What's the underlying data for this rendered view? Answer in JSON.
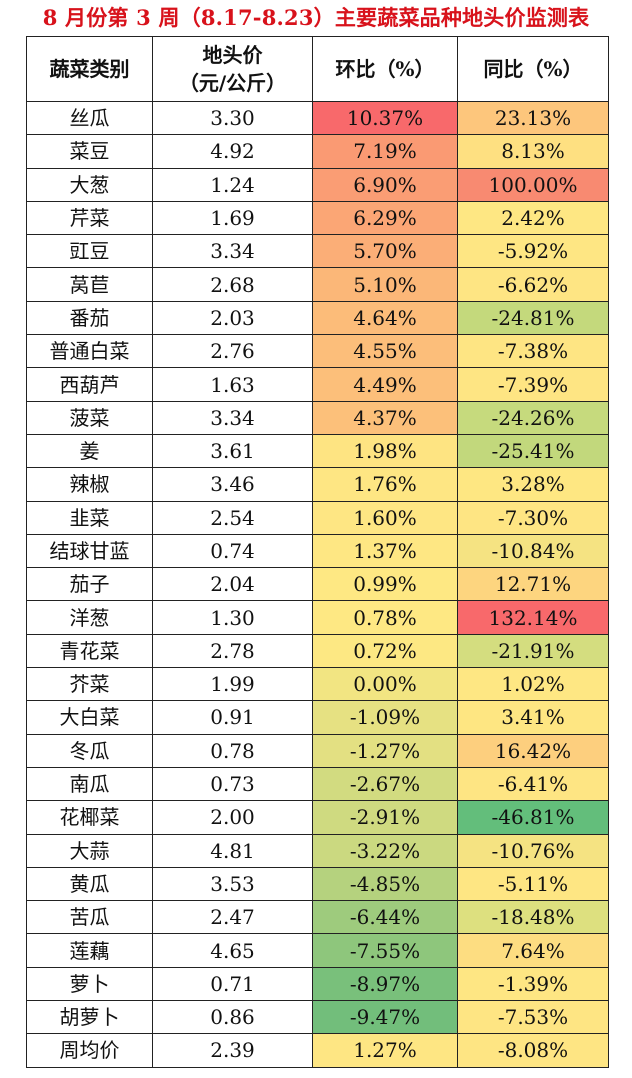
{
  "title": "8 月份第 3 周（8.17-8.23）主要蔬菜品种地头价监测表",
  "headers": {
    "category": "蔬菜类别",
    "price_line1": "地头价",
    "price_line2": "（元/公斤）",
    "mom": "环比（%）",
    "yoy": "同比（%）"
  },
  "rows": [
    {
      "name": "丝瓜",
      "price": "3.30",
      "mom": "10.37%",
      "yoy": "23.13%",
      "mom_color": "#f8696b",
      "yoy_color": "#fdc67c"
    },
    {
      "name": "菜豆",
      "price": "4.92",
      "mom": "7.19%",
      "yoy": "8.13%",
      "mom_color": "#fa9a73",
      "yoy_color": "#fee081"
    },
    {
      "name": "大葱",
      "price": "1.24",
      "mom": "6.90%",
      "yoy": "100.00%",
      "mom_color": "#fa9d74",
      "yoy_color": "#f88a71"
    },
    {
      "name": "芹菜",
      "price": "1.69",
      "mom": "6.29%",
      "yoy": "2.42%",
      "mom_color": "#fba675",
      "yoy_color": "#fee783"
    },
    {
      "name": "豇豆",
      "price": "3.34",
      "mom": "5.70%",
      "yoy": "-5.92%",
      "mom_color": "#fbae77",
      "yoy_color": "#fee683"
    },
    {
      "name": "莴苣",
      "price": "2.68",
      "mom": "5.10%",
      "yoy": "-6.62%",
      "mom_color": "#fbb778",
      "yoy_color": "#fee583"
    },
    {
      "name": "番茄",
      "price": "2.03",
      "mom": "4.64%",
      "yoy": "-24.81%",
      "mom_color": "#fcbc79",
      "yoy_color": "#c4d97c"
    },
    {
      "name": "普通白菜",
      "price": "2.76",
      "mom": "4.55%",
      "yoy": "-7.38%",
      "mom_color": "#fcbe7a",
      "yoy_color": "#fee583"
    },
    {
      "name": "西葫芦",
      "price": "1.63",
      "mom": "4.49%",
      "yoy": "-7.39%",
      "mom_color": "#fcbf7a",
      "yoy_color": "#fee583"
    },
    {
      "name": "菠菜",
      "price": "3.34",
      "mom": "4.37%",
      "yoy": "-24.26%",
      "mom_color": "#fcc07a",
      "yoy_color": "#c6da7d"
    },
    {
      "name": "姜",
      "price": "3.61",
      "mom": "1.98%",
      "yoy": "-25.41%",
      "mom_color": "#fee482",
      "yoy_color": "#c2d87c"
    },
    {
      "name": "辣椒",
      "price": "3.46",
      "mom": "1.76%",
      "yoy": "3.28%",
      "mom_color": "#fee683",
      "yoy_color": "#fee782"
    },
    {
      "name": "韭菜",
      "price": "2.54",
      "mom": "1.60%",
      "yoy": "-7.30%",
      "mom_color": "#fee683",
      "yoy_color": "#fee583"
    },
    {
      "name": "结球甘蓝",
      "price": "0.74",
      "mom": "1.37%",
      "yoy": "-10.84%",
      "mom_color": "#fee783",
      "yoy_color": "#f5e382"
    },
    {
      "name": "茄子",
      "price": "2.04",
      "mom": "0.99%",
      "yoy": "12.71%",
      "mom_color": "#fee883",
      "yoy_color": "#fdd57f"
    },
    {
      "name": "洋葱",
      "price": "1.30",
      "mom": "0.78%",
      "yoy": "132.14%",
      "mom_color": "#fee883",
      "yoy_color": "#f8696b"
    },
    {
      "name": "青花菜",
      "price": "2.78",
      "mom": "0.72%",
      "yoy": "-21.91%",
      "mom_color": "#fde883",
      "yoy_color": "#d4dd7f"
    },
    {
      "name": "芥菜",
      "price": "1.99",
      "mom": "0.00%",
      "yoy": "1.02%",
      "mom_color": "#f2e582",
      "yoy_color": "#fee783"
    },
    {
      "name": "大白菜",
      "price": "0.91",
      "mom": "-1.09%",
      "yoy": "3.41%",
      "mom_color": "#e6e182",
      "yoy_color": "#fee682"
    },
    {
      "name": "冬瓜",
      "price": "0.78",
      "mom": "-1.27%",
      "yoy": "16.42%",
      "mom_color": "#e3e082",
      "yoy_color": "#fdcf7e"
    },
    {
      "name": "南瓜",
      "price": "0.73",
      "mom": "-2.67%",
      "yoy": "-6.41%",
      "mom_color": "#d2db80",
      "yoy_color": "#fee583"
    },
    {
      "name": "花椰菜",
      "price": "2.00",
      "mom": "-2.91%",
      "yoy": "-46.81%",
      "mom_color": "#cfda80",
      "yoy_color": "#63be7b"
    },
    {
      "name": "大蒜",
      "price": "4.81",
      "mom": "-3.22%",
      "yoy": "-10.76%",
      "mom_color": "#cbd980",
      "yoy_color": "#f5e382"
    },
    {
      "name": "黄瓜",
      "price": "3.53",
      "mom": "-4.85%",
      "yoy": "-5.11%",
      "mom_color": "#b5d27e",
      "yoy_color": "#fee683"
    },
    {
      "name": "苦瓜",
      "price": "2.47",
      "mom": "-6.44%",
      "yoy": "-18.48%",
      "mom_color": "#9ecb7d",
      "yoy_color": "#dde07f"
    },
    {
      "name": "莲藕",
      "price": "4.65",
      "mom": "-7.55%",
      "yoy": "7.64%",
      "mom_color": "#8ec67c",
      "yoy_color": "#fddd81"
    },
    {
      "name": "萝卜",
      "price": "0.71",
      "mom": "-8.97%",
      "yoy": "-1.39%",
      "mom_color": "#79c07b",
      "yoy_color": "#fee683"
    },
    {
      "name": "胡萝卜",
      "price": "0.86",
      "mom": "-9.47%",
      "yoy": "-7.53%",
      "mom_color": "#72be7b",
      "yoy_color": "#fee583"
    },
    {
      "name": "周均价",
      "price": "2.39",
      "mom": "1.27%",
      "yoy": "-8.08%",
      "mom_color": "#fee683",
      "yoy_color": "#fee583"
    }
  ]
}
